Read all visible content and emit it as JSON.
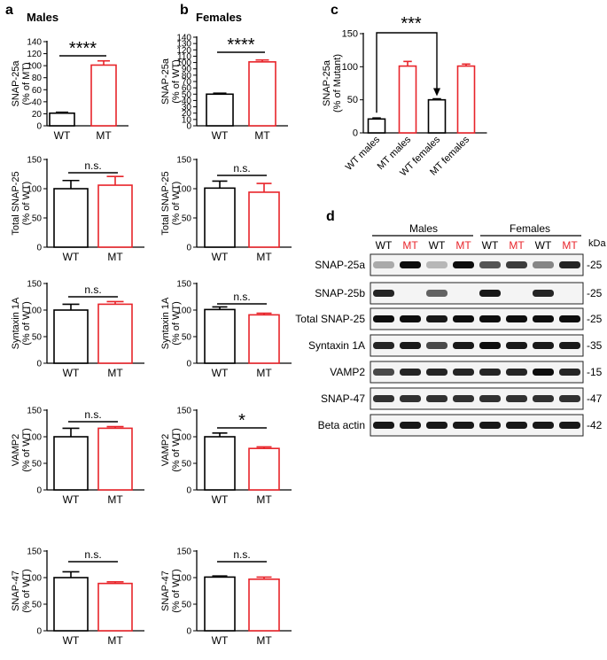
{
  "panel_labels": {
    "a": "a",
    "b": "b",
    "c": "c",
    "d": "d"
  },
  "panel_titles": {
    "a": "Males",
    "b": "Females"
  },
  "colors": {
    "wt": "#000000",
    "mt": "#e8242a"
  },
  "chart_data": [
    {
      "panel": "a",
      "type": "bar",
      "categories": [
        "WT",
        "MT"
      ],
      "values": [
        21,
        101
      ],
      "errors": [
        1.5,
        7
      ],
      "ylim": [
        0,
        140
      ],
      "ticks": [
        0,
        20,
        40,
        60,
        80,
        100,
        120,
        140
      ],
      "ylabel": [
        "SNAP-25a",
        "(% of MT)"
      ],
      "annotation": "****"
    },
    {
      "panel": "a",
      "type": "bar",
      "categories": [
        "WT",
        "MT"
      ],
      "values": [
        100,
        106
      ],
      "errors": [
        14,
        15
      ],
      "ylim": [
        0,
        150
      ],
      "ticks": [
        0,
        50,
        100,
        150
      ],
      "ylabel": [
        "Total SNAP-25",
        "(% of WT)"
      ],
      "annotation": "n.s."
    },
    {
      "panel": "a",
      "type": "bar",
      "categories": [
        "WT",
        "MT"
      ],
      "values": [
        100,
        111
      ],
      "errors": [
        11,
        5
      ],
      "ylim": [
        0,
        150
      ],
      "ticks": [
        0,
        50,
        100,
        150
      ],
      "ylabel": [
        "Syntaxin 1A",
        "(% of WT)"
      ],
      "annotation": "n.s."
    },
    {
      "panel": "a",
      "type": "bar",
      "categories": [
        "WT",
        "MT"
      ],
      "values": [
        100,
        116
      ],
      "errors": [
        16,
        3
      ],
      "ylim": [
        0,
        150
      ],
      "ticks": [
        0,
        50,
        100,
        150
      ],
      "ylabel": [
        "VAMP2",
        "(% of WT)"
      ],
      "annotation": "n.s."
    },
    {
      "panel": "a",
      "type": "bar",
      "categories": [
        "WT",
        "MT"
      ],
      "values": [
        100,
        89
      ],
      "errors": [
        11,
        3
      ],
      "ylim": [
        0,
        150
      ],
      "ticks": [
        0,
        50,
        100,
        150
      ],
      "ylabel": [
        "SNAP-47",
        "(% of WT)"
      ],
      "annotation": "n.s."
    },
    {
      "panel": "b",
      "type": "bar",
      "categories": [
        "WT",
        "MT"
      ],
      "values": [
        50,
        101
      ],
      "errors": [
        1.5,
        3
      ],
      "ylim": [
        0,
        140
      ],
      "ticks": [
        0,
        10,
        20,
        30,
        40,
        50,
        60,
        70,
        80,
        90,
        100,
        110,
        120,
        130,
        140
      ],
      "ylabel": [
        "SNAP-25a",
        "(% of WT)"
      ],
      "annotation": "****"
    },
    {
      "panel": "b",
      "type": "bar",
      "categories": [
        "WT",
        "MT"
      ],
      "values": [
        101,
        94
      ],
      "errors": [
        12,
        15
      ],
      "ylim": [
        0,
        150
      ],
      "ticks": [
        0,
        50,
        100,
        150
      ],
      "ylabel": [
        "Total SNAP-25",
        "(% of WT)"
      ],
      "annotation": "n.s."
    },
    {
      "panel": "b",
      "type": "bar",
      "categories": [
        "WT",
        "MT"
      ],
      "values": [
        101,
        91
      ],
      "errors": [
        5,
        3
      ],
      "ylim": [
        0,
        150
      ],
      "ticks": [
        0,
        50,
        100,
        150
      ],
      "ylabel": [
        "Syntaxin 1A",
        "(% of WT)"
      ],
      "annotation": "n.s."
    },
    {
      "panel": "b",
      "type": "bar",
      "categories": [
        "WT",
        "MT"
      ],
      "values": [
        100,
        78
      ],
      "errors": [
        7,
        3
      ],
      "ylim": [
        0,
        150
      ],
      "ticks": [
        0,
        50,
        100,
        150
      ],
      "ylabel": [
        "VAMP2",
        "(% of WT)"
      ],
      "annotation": "*"
    },
    {
      "panel": "b",
      "type": "bar",
      "categories": [
        "WT",
        "MT"
      ],
      "values": [
        101,
        97
      ],
      "errors": [
        2,
        4
      ],
      "ylim": [
        0,
        150
      ],
      "ticks": [
        0,
        50,
        100,
        150
      ],
      "ylabel": [
        "SNAP-47",
        "(% of WT)"
      ],
      "annotation": "n.s."
    },
    {
      "panel": "c",
      "type": "bar",
      "categories": [
        "WT males",
        "MT males",
        "WT females",
        "MT females"
      ],
      "values": [
        21,
        101,
        50,
        101
      ],
      "errors": [
        1.5,
        7,
        1.5,
        3
      ],
      "ylim": [
        0,
        150
      ],
      "ticks": [
        0,
        50,
        100,
        150
      ],
      "ylabel": [
        "SNAP-25a",
        "(% of Mutant)"
      ],
      "annotation": "***"
    },
    {
      "panel": "d",
      "type": "table",
      "group_labels": [
        "Males",
        "Females"
      ],
      "lanes": [
        "WT",
        "MT",
        "WT",
        "MT",
        "WT",
        "MT",
        "WT",
        "MT"
      ],
      "kda_label": "kDa",
      "rows": [
        {
          "label": "SNAP-25a",
          "kda": "-25",
          "intensity": [
            0.3,
            0.95,
            0.25,
            0.95,
            0.65,
            0.75,
            0.45,
            0.85
          ]
        },
        {
          "label": "SNAP-25b",
          "kda": "-25",
          "intensity": [
            0.85,
            0.0,
            0.6,
            0.0,
            0.9,
            0.0,
            0.85,
            0.0
          ]
        },
        {
          "label": "Total SNAP-25",
          "kda": "-25",
          "intensity": [
            0.95,
            0.95,
            0.9,
            0.95,
            0.95,
            0.95,
            0.95,
            0.95
          ]
        },
        {
          "label": "Syntaxin 1A",
          "kda": "-35",
          "intensity": [
            0.85,
            0.9,
            0.7,
            0.9,
            0.95,
            0.9,
            0.9,
            0.9
          ]
        },
        {
          "label": "VAMP2",
          "kda": "-15",
          "intensity": [
            0.7,
            0.85,
            0.85,
            0.85,
            0.85,
            0.85,
            0.95,
            0.85
          ]
        },
        {
          "label": "SNAP-47",
          "kda": "-47",
          "intensity": [
            0.8,
            0.8,
            0.8,
            0.8,
            0.8,
            0.8,
            0.8,
            0.8
          ]
        },
        {
          "label": "Beta actin",
          "kda": "-42",
          "intensity": [
            0.9,
            0.9,
            0.9,
            0.9,
            0.9,
            0.9,
            0.9,
            0.9
          ]
        }
      ]
    }
  ]
}
